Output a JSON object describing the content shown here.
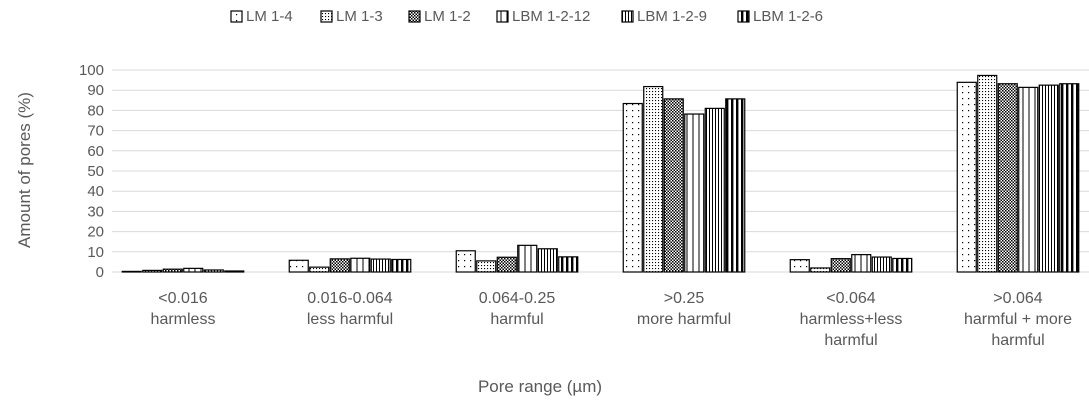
{
  "chart_data": {
    "type": "bar",
    "title": "",
    "xlabel": "Pore range (µm)",
    "ylabel": "Amount of pores (%)",
    "ylim": [
      0,
      100
    ],
    "yticks": [
      0,
      10,
      20,
      30,
      40,
      50,
      60,
      70,
      80,
      90,
      100
    ],
    "grid": true,
    "legend_position": "top",
    "categories": [
      [
        "<0.016",
        "harmless"
      ],
      [
        "0.016-0.064",
        "less harmful"
      ],
      [
        "0.064-0.25",
        "harmful"
      ],
      [
        ">0.25",
        "more harmful"
      ],
      [
        "<0.064",
        "harmless+less",
        "harmful"
      ],
      [
        ">0.064",
        "harmful + more",
        "harmful"
      ]
    ],
    "series": [
      {
        "name": "LM 1-4",
        "pattern": "dots-sparse",
        "values": [
          0.3,
          5.8,
          10.5,
          83.4,
          6.1,
          93.9
        ]
      },
      {
        "name": "LM 1-3",
        "pattern": "dots-dense",
        "values": [
          0.8,
          2.4,
          5.5,
          91.8,
          2.0,
          97.3
        ]
      },
      {
        "name": "LM 1-2",
        "pattern": "checker",
        "values": [
          1.4,
          6.5,
          7.3,
          85.7,
          6.6,
          93.2
        ]
      },
      {
        "name": "LBM 1-2-12",
        "pattern": "vline-sparse",
        "values": [
          1.8,
          6.8,
          13.2,
          78.2,
          8.6,
          91.4
        ]
      },
      {
        "name": "LBM 1-2-9",
        "pattern": "vline-dense",
        "values": [
          1.0,
          6.4,
          11.5,
          81.0,
          7.4,
          92.5
        ]
      },
      {
        "name": "LBM 1-2-6",
        "pattern": "vline-bold",
        "values": [
          0.5,
          6.2,
          7.5,
          85.7,
          6.7,
          93.2
        ]
      }
    ]
  }
}
